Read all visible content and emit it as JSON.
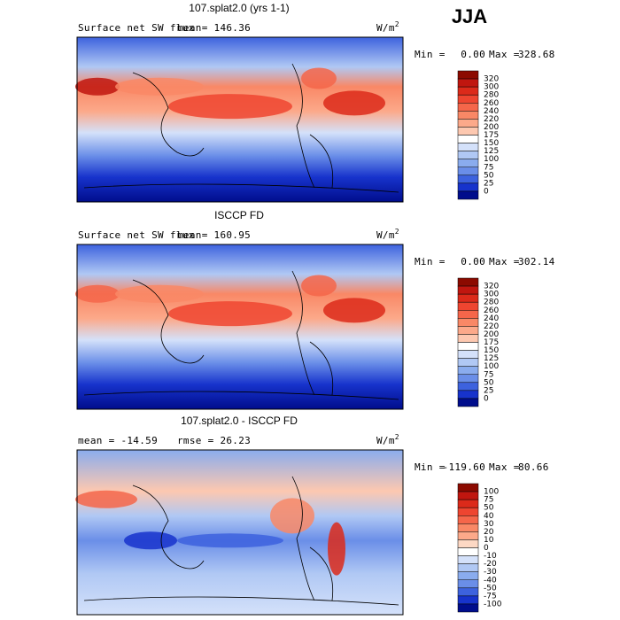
{
  "season": "JJA",
  "panels": [
    {
      "title": "107.splat2.0 (yrs 1-1)",
      "left_text": "Surface net SW flux",
      "mean_text": "mean= 146.36",
      "units": "W/m",
      "units_power": "2",
      "min_text": "Min =",
      "min": "0.00",
      "max_text": "Max =",
      "max": "328.68",
      "levels": [
        320,
        300,
        280,
        260,
        240,
        220,
        200,
        175,
        150,
        125,
        100,
        75,
        50,
        25,
        0
      ],
      "colors": [
        "#8c0a00",
        "#c0160f",
        "#dc2a1a",
        "#ee4530",
        "#f5664a",
        "#f98866",
        "#fca98a",
        "#fdc8b0",
        "#ffffff",
        "#d4e1fa",
        "#b0c8f4",
        "#8aacee",
        "#6a8ee8",
        "#3d62de",
        "#1733cc",
        "#000d8c"
      ]
    },
    {
      "title": "ISCCP FD",
      "left_text": "Surface net SW flux",
      "mean_text": "mean= 160.95",
      "units": "W/m",
      "units_power": "2",
      "min_text": "Min =",
      "min": "0.00",
      "max_text": "Max =",
      "max": "302.14",
      "levels": [
        320,
        300,
        280,
        260,
        240,
        220,
        200,
        175,
        150,
        125,
        100,
        75,
        50,
        25,
        0
      ],
      "colors": [
        "#8c0a00",
        "#c0160f",
        "#dc2a1a",
        "#ee4530",
        "#f5664a",
        "#f98866",
        "#fca98a",
        "#fdc8b0",
        "#ffffff",
        "#d4e1fa",
        "#b0c8f4",
        "#8aacee",
        "#6a8ee8",
        "#3d62de",
        "#1733cc",
        "#000d8c"
      ]
    },
    {
      "title": "107.splat2.0 - ISCCP FD",
      "left_text": "mean = -14.59",
      "mean_text": "rmse =  26.23",
      "units": "W/m",
      "units_power": "2",
      "min_text": "Min =",
      "min": "-119.60",
      "max_text": "Max =",
      "max": "80.66",
      "levels": [
        100,
        75,
        50,
        40,
        30,
        20,
        10,
        0,
        -10,
        -20,
        -30,
        -40,
        -50,
        -75,
        -100
      ],
      "colors": [
        "#8c0a00",
        "#c0160f",
        "#dc2a1a",
        "#ee4530",
        "#f5664a",
        "#f98866",
        "#fca98a",
        "#fdd8c4",
        "#ffffff",
        "#d4e1fa",
        "#b0c8f4",
        "#8aacee",
        "#6a8ee8",
        "#3d62de",
        "#1733cc",
        "#000d8c"
      ]
    }
  ]
}
